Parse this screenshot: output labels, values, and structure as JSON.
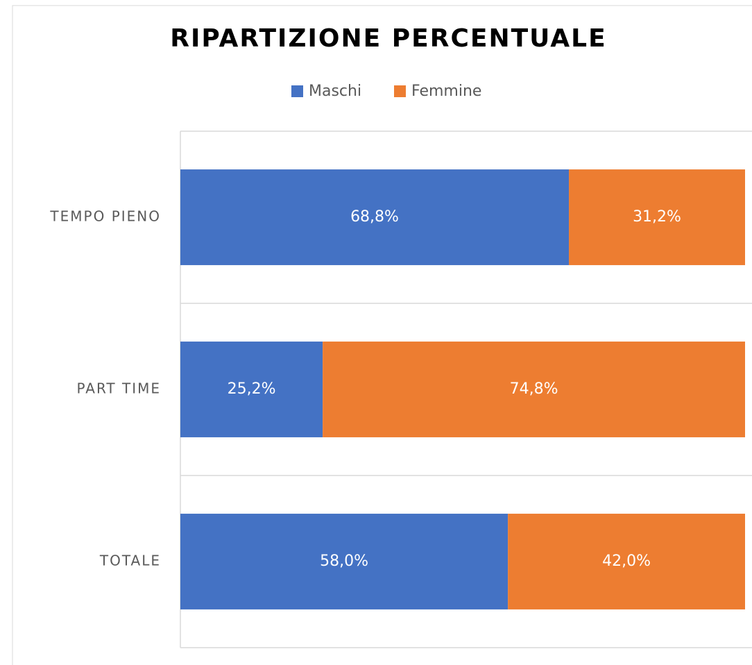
{
  "chart_data": {
    "type": "stacked_bar_horizontal",
    "title": "RIPARTIZIONE PERCENTUALE",
    "categories": [
      "TEMPO PIENO",
      "PART TIME",
      "TOTALE"
    ],
    "series": [
      {
        "name": "Maschi",
        "color": "#4472c4",
        "values": [
          68.8,
          25.2,
          58.0
        ],
        "value_labels": [
          "68,8%",
          "25,2%",
          "58,0%"
        ]
      },
      {
        "name": "Femmine",
        "color": "#ed7d31",
        "values": [
          31.2,
          74.8,
          42.0
        ],
        "value_labels": [
          "31,2%",
          "74,8%",
          "42,0%"
        ]
      }
    ],
    "xlim": [
      0,
      100
    ],
    "legend": "top"
  }
}
